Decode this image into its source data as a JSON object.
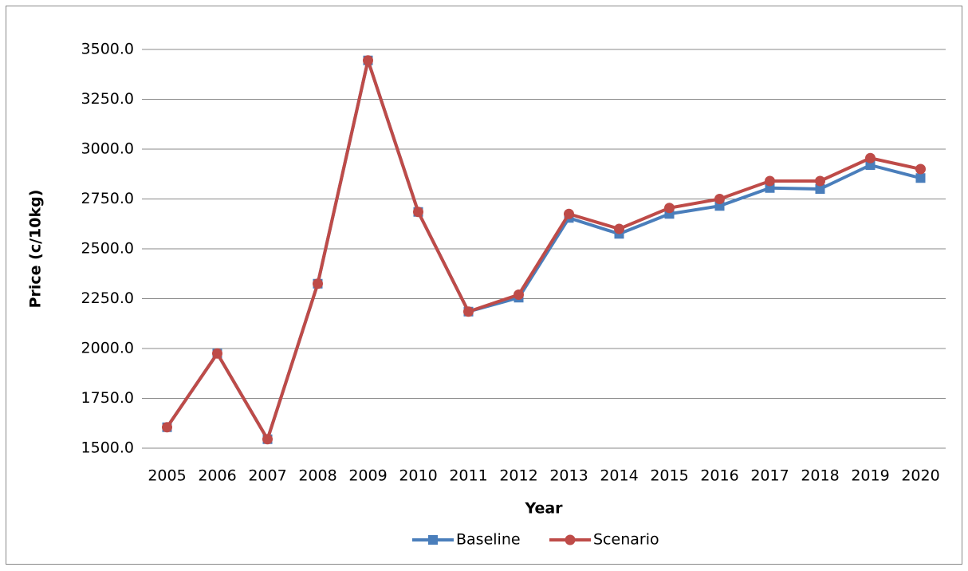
{
  "chart_data": {
    "type": "line",
    "x_label": "Year",
    "y_label": "Price (c/10kg)",
    "categories": [
      "2005",
      "2006",
      "2007",
      "2008",
      "2009",
      "2010",
      "2011",
      "2012",
      "2013",
      "2014",
      "2015",
      "2016",
      "2017",
      "2018",
      "2019",
      "2020"
    ],
    "series": [
      {
        "name": "Baseline",
        "color": "#4a7ebb",
        "marker": "square",
        "values": [
          1605,
          1975,
          1545,
          2325,
          3445,
          2685,
          2185,
          2255,
          2655,
          2575,
          2675,
          2715,
          2805,
          2800,
          2920,
          2855
        ]
      },
      {
        "name": "Scenario",
        "color": "#be4b48",
        "marker": "circle",
        "values": [
          1605,
          1975,
          1545,
          2325,
          3445,
          2685,
          2185,
          2270,
          2675,
          2600,
          2705,
          2750,
          2840,
          2840,
          2955,
          2900
        ]
      }
    ],
    "ylim": [
      1500,
      3500
    ],
    "yticks": [
      {
        "value": 1500,
        "label": "1500.0"
      },
      {
        "value": 1750,
        "label": "1750.0"
      },
      {
        "value": 2000,
        "label": "2000.0"
      },
      {
        "value": 2250,
        "label": "2250.0"
      },
      {
        "value": 2500,
        "label": "2500.0"
      },
      {
        "value": 2750,
        "label": "2750.0"
      },
      {
        "value": 3000,
        "label": "3000.0"
      },
      {
        "value": 3250,
        "label": "3250.0"
      },
      {
        "value": 3500,
        "label": "3500.0"
      }
    ],
    "grid": true,
    "legend": "bottom"
  }
}
